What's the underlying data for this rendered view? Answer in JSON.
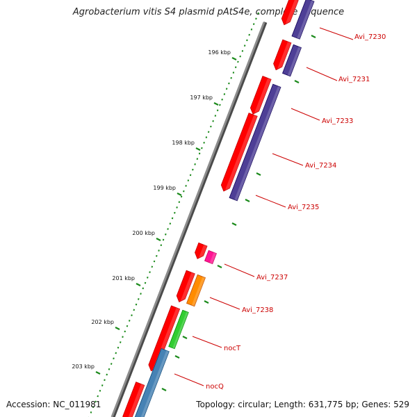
{
  "title": "Agrobacterium vitis S4 plasmid pAtS4e, complete sequence",
  "accession": "Accession: NC_011981",
  "stats": "Topology: circular; Length: 631,775 bp; Genes: 529",
  "colors": {
    "backbone": "#8c8c8c",
    "backbone_shadow": "#4a4a4a",
    "tick": "#1b8a1b",
    "forward_gene": "#ff0000",
    "reverse_gene": "#4e3f96",
    "pink_gene": "#ff1493",
    "orange_gene": "#ff8c00",
    "green_gene": "#32cd32",
    "blue_gene": "#4682b4",
    "label": "#cc0000"
  },
  "ruler": {
    "ticks": [
      {
        "label": "196 kbp"
      },
      {
        "label": "197 kbp"
      },
      {
        "label": "198 kbp"
      },
      {
        "label": "199 kbp"
      },
      {
        "label": "200 kbp"
      },
      {
        "label": "201 kbp"
      },
      {
        "label": "202 kbp"
      },
      {
        "label": "203 kbp"
      }
    ]
  },
  "genes": {
    "labels": [
      "Avi_7230",
      "Avi_7231",
      "Avi_7233",
      "Avi_7234",
      "Avi_7235",
      "Avi_7237",
      "Avi_7238",
      "nocT",
      "nocQ"
    ]
  }
}
